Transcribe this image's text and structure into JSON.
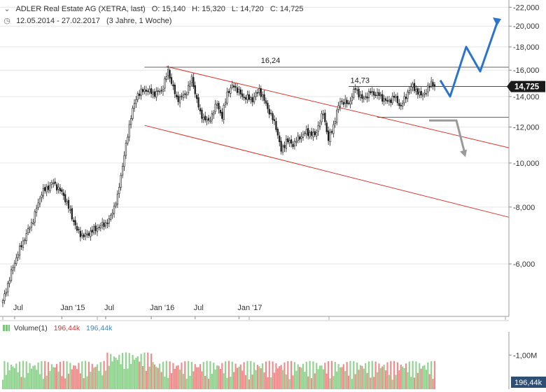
{
  "header": {
    "symbol_line": "ADLER Real Estate AG (XETRA, last)",
    "open": "O: 15,140",
    "high": "H: 15,320",
    "low": "L: 14,720",
    "close": "C: 14,725",
    "date_range": "12.05.2014 - 27.02.2017",
    "period": "(3 Jahre, 1 Woche)"
  },
  "volume_header": {
    "label": "Volume(1)",
    "value_red": "196,44k",
    "value_blue": "196,44k"
  },
  "colors": {
    "up": "#90d490",
    "down": "#f08c8c",
    "channel": "#e0362c",
    "bullish_arrow": "#2a74d0",
    "bearish_arrow": "#9a9a9a",
    "grid": "#e6e6e6",
    "last_price_bg": "#1a1a1a"
  },
  "chart_data": {
    "type": "candlestick",
    "scale": "log",
    "ylim": [
      4.6,
      22.5
    ],
    "y_ticks": [
      "22,000",
      "20,000",
      "18,000",
      "16,000",
      "14,000",
      "12,000",
      "10,000",
      "8,000",
      "6,000"
    ],
    "x_ticks": [
      "Jul",
      "Jan '15",
      "Jul",
      "Jan '16",
      "Jul",
      "Jan '17"
    ],
    "last_price": "14,725",
    "annotations": [
      {
        "label": "16,24",
        "level": 16.24
      },
      {
        "label": "14,73",
        "level": 14.73
      }
    ],
    "support_level": 12.6,
    "volume_axis": {
      "tick": "1,00M",
      "last": "196,44k"
    },
    "anchors": [
      [
        0,
        4.95
      ],
      [
        8,
        6.2
      ],
      [
        18,
        7.5
      ],
      [
        23,
        8.6
      ],
      [
        30,
        9.05
      ],
      [
        36,
        8.5
      ],
      [
        44,
        7.1
      ],
      [
        48,
        6.9
      ],
      [
        56,
        7.2
      ],
      [
        63,
        7.45
      ],
      [
        68,
        8.4
      ],
      [
        73,
        10.9
      ],
      [
        76,
        12.7
      ],
      [
        80,
        14.2
      ],
      [
        85,
        14.5
      ],
      [
        89,
        14.2
      ],
      [
        94,
        14.4
      ],
      [
        98,
        15.9
      ],
      [
        103,
        13.8
      ],
      [
        108,
        14.1
      ],
      [
        112,
        15.3
      ],
      [
        117,
        12.8
      ],
      [
        122,
        12.3
      ],
      [
        127,
        13.5
      ],
      [
        130,
        12.6
      ],
      [
        133,
        14.3
      ],
      [
        137,
        14.8
      ],
      [
        142,
        14.0
      ],
      [
        148,
        13.8
      ],
      [
        152,
        14.5
      ],
      [
        157,
        13.2
      ],
      [
        162,
        12.0
      ],
      [
        165,
        10.6
      ],
      [
        168,
        11.2
      ],
      [
        172,
        11.0
      ],
      [
        176,
        11.4
      ],
      [
        180,
        11.7
      ],
      [
        185,
        11.5
      ],
      [
        190,
        12.9
      ],
      [
        193,
        11.2
      ],
      [
        196,
        12.1
      ],
      [
        200,
        13.7
      ],
      [
        205,
        13.5
      ],
      [
        209,
        14.6
      ],
      [
        213,
        13.8
      ],
      [
        218,
        14.3
      ],
      [
        223,
        14.1
      ],
      [
        228,
        13.6
      ],
      [
        232,
        14.0
      ],
      [
        236,
        13.3
      ],
      [
        240,
        14.3
      ],
      [
        243,
        14.8
      ],
      [
        247,
        14.1
      ],
      [
        251,
        14.3
      ],
      [
        254,
        15.1
      ],
      [
        256,
        14.725
      ]
    ]
  }
}
